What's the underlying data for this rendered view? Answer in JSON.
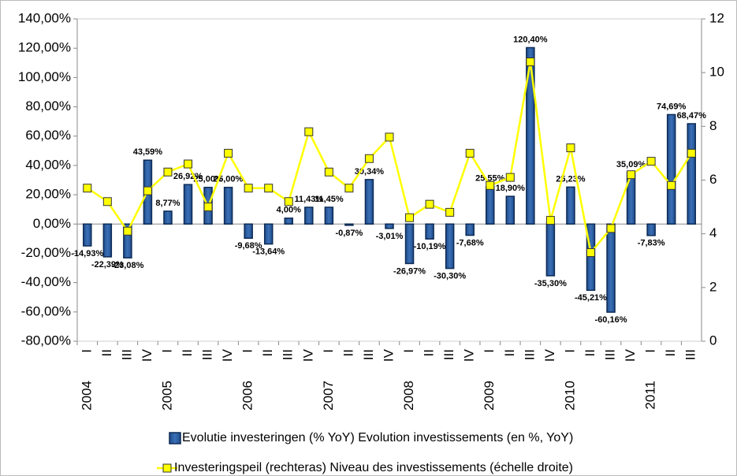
{
  "chart_data": {
    "type": "bar",
    "categories": [
      "I",
      "II",
      "III",
      "IV",
      "I",
      "II",
      "III",
      "IV",
      "I",
      "II",
      "III",
      "IV",
      "I",
      "II",
      "III",
      "IV",
      "I",
      "II",
      "III",
      "IV",
      "I",
      "II",
      "III",
      "IV",
      "I",
      "II",
      "III",
      "IV",
      "I",
      "II",
      "III"
    ],
    "years": [
      "2004",
      null,
      null,
      null,
      "2005",
      null,
      null,
      null,
      "2006",
      null,
      null,
      null,
      "2007",
      null,
      null,
      null,
      "2008",
      null,
      null,
      null,
      "2009",
      null,
      null,
      null,
      "2010",
      null,
      null,
      null,
      "2011",
      null,
      null
    ],
    "series": [
      {
        "name": "Evolutie investeringen (% YoY) Evolution investissements (en %, YoY)",
        "type": "bar",
        "color": "#1f4e8c",
        "values": [
          -14.93,
          -22.39,
          -23.08,
          43.59,
          8.77,
          26.92,
          25.0,
          25.0,
          -9.68,
          -13.64,
          4.0,
          11.43,
          11.45,
          -0.87,
          30.34,
          -3.01,
          -26.97,
          -10.19,
          -30.3,
          -7.68,
          25.55,
          18.9,
          120.4,
          -35.3,
          25.23,
          -45.21,
          -60.16,
          35.09,
          -7.83,
          74.69,
          68.47
        ],
        "value_labels": [
          "-14,93%",
          "-22,39%",
          "-23,08%",
          "43,59%",
          "8,77%",
          "26,92%",
          "25,00%",
          "25,00%",
          "-9,68%",
          "-13,64%",
          "4,00%",
          "11,43%",
          "11,45%",
          "-0,87%",
          "30,34%",
          "-3,01%",
          "-26,97%",
          "-10,19%",
          "-30,30%",
          "-7,68%",
          "25,55%",
          "18,90%",
          "120,40%",
          "-35,30%",
          "25,23%",
          "-45,21%",
          "-60,16%",
          "35,09%",
          "-7,83%",
          "74,69%",
          "68,47%"
        ]
      },
      {
        "name": "Investeringspeil (rechteras) Niveau des investissements (échelle droite)",
        "type": "line",
        "axis": "y2",
        "color": "#ffff00",
        "values": [
          5.7,
          5.2,
          4.1,
          5.6,
          6.3,
          6.6,
          5.0,
          7.0,
          5.7,
          5.7,
          5.2,
          7.8,
          6.3,
          5.7,
          6.8,
          7.6,
          4.6,
          5.1,
          4.8,
          7.0,
          5.8,
          6.1,
          10.4,
          4.5,
          7.2,
          3.3,
          4.2,
          6.2,
          6.7,
          5.8,
          7.0
        ]
      }
    ],
    "ylim": [
      -80,
      140
    ],
    "yticks": [
      {
        "value": -80,
        "label": "-80,00%"
      },
      {
        "value": -60,
        "label": "-60,00%"
      },
      {
        "value": -40,
        "label": "-40,00%"
      },
      {
        "value": -20,
        "label": "-20,00%"
      },
      {
        "value": 0,
        "label": "0,00%"
      },
      {
        "value": 20,
        "label": "20,00%"
      },
      {
        "value": 40,
        "label": "40,00%"
      },
      {
        "value": 60,
        "label": "60,00%"
      },
      {
        "value": 80,
        "label": "80,00%"
      },
      {
        "value": 100,
        "label": "100,00%"
      },
      {
        "value": 120,
        "label": "120,00%"
      },
      {
        "value": 140,
        "label": "140,00%"
      }
    ],
    "y2lim": [
      0,
      12
    ],
    "y2ticks": [
      0,
      2,
      4,
      6,
      8,
      10,
      12
    ],
    "grid": false,
    "legend": "bottom"
  }
}
